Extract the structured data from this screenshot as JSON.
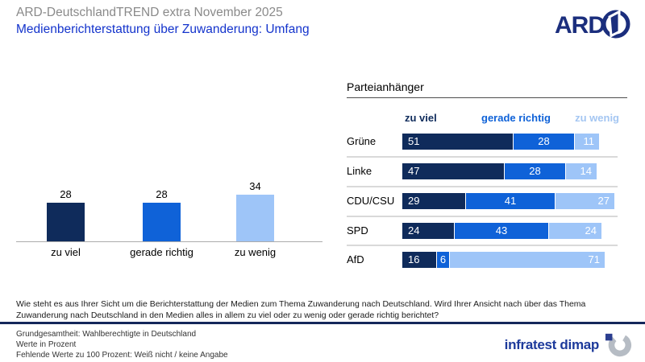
{
  "header": {
    "pretitle": "ARD-DeutschlandTREND extra November 2025",
    "title": "Medienberichterstattung über Zuwanderung: Umfang"
  },
  "brand": {
    "ard": "ARD",
    "infratest": "infratest dimap"
  },
  "colors": {
    "zu_viel": "#0F2B5B",
    "gerade_richtig": "#0F62D8",
    "zu_wenig": "#9EC5F8",
    "title_blue": "#1333CC",
    "pretitle_gray": "#8A8A8A",
    "separator_gray": "#D9D9D9",
    "rule_navy": "#14275B"
  },
  "question": "Wie steht es aus Ihrer Sicht um die Berichterstattung der Medien zum Thema Zuwanderung nach Deutschland. Wird Ihrer Ansicht nach über das Thema Zuwanderung nach Deutschland in den Medien alles in allem zu viel oder zu wenig oder gerade richtig berichtet?",
  "footnotes": [
    "Grundgesamtheit: Wahlberechtigte in Deutschland",
    "Werte in Prozent",
    "Fehlende Werte zu 100 Prozent: Weiß nicht / keine Angabe"
  ],
  "chart_data": [
    {
      "type": "bar",
      "title": "",
      "categories": [
        "zu viel",
        "gerade richtig",
        "zu wenig"
      ],
      "values": [
        28,
        28,
        34
      ],
      "colors": [
        "#0F2B5B",
        "#0F62D8",
        "#9EC5F8"
      ],
      "xlabel": "",
      "ylabel": "",
      "ylim": [
        0,
        40
      ],
      "value_labels": true,
      "grid": false
    },
    {
      "type": "bar",
      "subtype": "horizontal-stacked",
      "title": "Parteianhänger",
      "categories": [
        "Grüne",
        "Linke",
        "CDU/CSU",
        "SPD",
        "AfD"
      ],
      "series": [
        {
          "name": "zu viel",
          "color": "#0F2B5B",
          "values": [
            51,
            47,
            29,
            24,
            16
          ]
        },
        {
          "name": "gerade richtig",
          "color": "#0F62D8",
          "values": [
            28,
            28,
            41,
            43,
            6
          ]
        },
        {
          "name": "zu wenig",
          "color": "#9EC5F8",
          "values": [
            11,
            14,
            27,
            24,
            71
          ]
        }
      ],
      "xlim": [
        0,
        100
      ],
      "legend_position": "top",
      "grid": false
    }
  ]
}
